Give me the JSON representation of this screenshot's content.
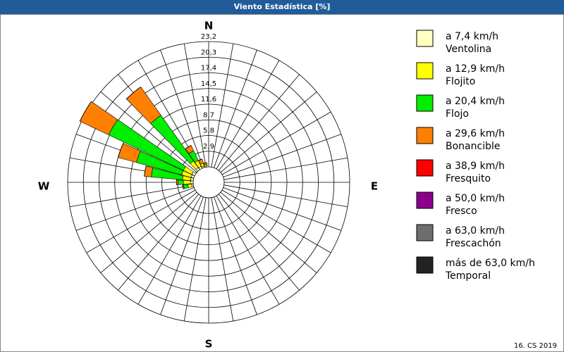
{
  "chart_data": {
    "type": "windrose",
    "title": "Viento Estadística [%]",
    "footer": "16. CS 2019",
    "compass": {
      "N": "N",
      "E": "E",
      "S": "S",
      "W": "W"
    },
    "directions": [
      260,
      270,
      280,
      290,
      300,
      310,
      320,
      330,
      340,
      350
    ],
    "rlim": [
      0,
      23.2
    ],
    "rticks": [
      {
        "value": 2.9,
        "label": "2,9"
      },
      {
        "value": 5.8,
        "label": "5,8"
      },
      {
        "value": 8.7,
        "label": "8,7"
      },
      {
        "value": 11.6,
        "label": "11,6"
      },
      {
        "value": 14.5,
        "label": "14,5"
      },
      {
        "value": 17.4,
        "label": "17,4"
      },
      {
        "value": 20.3,
        "label": "20,3"
      },
      {
        "value": 23.2,
        "label": "23,2"
      }
    ],
    "series": [
      {
        "name": "a 7,4 km/h",
        "label": "Ventolina",
        "color": "#ffffc0",
        "values": [
          0.3,
          0.5,
          0.5,
          0.5,
          0.6,
          0,
          0.5,
          0.4,
          0.3,
          0.2
        ]
      },
      {
        "name": "a 12,9 km/h",
        "label": "Flojito",
        "color": "#ffff00",
        "values": [
          0.7,
          1.3,
          1.5,
          1.8,
          1.7,
          0,
          1.5,
          1.2,
          0.5,
          0.3
        ]
      },
      {
        "name": "a 20,4 km/h",
        "label": "Flojo",
        "color": "#00ee00",
        "values": [
          0.8,
          1.0,
          5.8,
          8.7,
          15.3,
          0,
          10.4,
          2.0,
          0,
          0
        ]
      },
      {
        "name": "a 29,6 km/h",
        "label": "Bonancible",
        "color": "#ff8000",
        "values": [
          0.2,
          0.3,
          1.3,
          3.5,
          5.9,
          0,
          6.4,
          1.1,
          0.8,
          0.3
        ]
      },
      {
        "name": "a 38,9 km/h",
        "label": "Fresquito",
        "color": "#ff0000",
        "values": [
          0,
          0,
          0,
          0,
          0,
          0,
          0,
          0,
          0,
          0
        ]
      },
      {
        "name": "a 50,0 km/h",
        "label": "Fresco",
        "color": "#8b008b",
        "values": [
          0,
          0,
          0,
          0,
          0,
          0,
          0,
          0,
          0,
          0
        ]
      },
      {
        "name": "a 63,0 km/h",
        "label": "Frescachón",
        "color": "#6e6e6e",
        "values": [
          0,
          0,
          0,
          0,
          0,
          0,
          0,
          0,
          0,
          0
        ]
      },
      {
        "name": "más de 63,0 km/h",
        "label": "Temporal",
        "color": "#222222",
        "values": [
          0,
          0,
          0,
          0,
          0,
          0,
          0,
          0,
          0,
          0
        ]
      }
    ]
  }
}
